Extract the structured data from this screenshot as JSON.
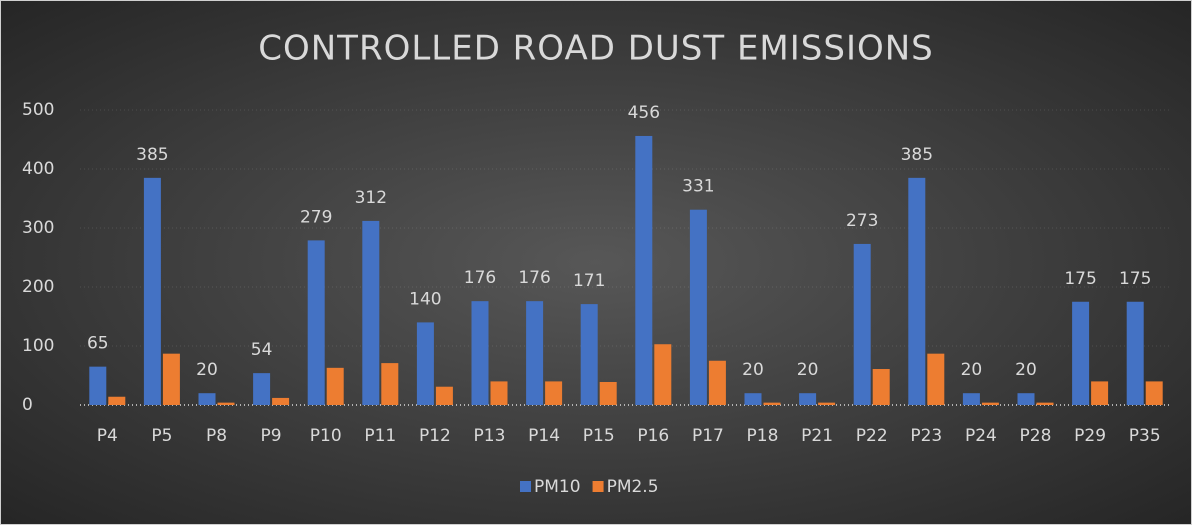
{
  "chart_data": {
    "type": "bar",
    "title": "CONTROLLED ROAD DUST EMISSIONS",
    "categories": [
      "P4",
      "P5",
      "P8",
      "P9",
      "P10",
      "P11",
      "P12",
      "P13",
      "P14",
      "P15",
      "P16",
      "P17",
      "P18",
      "P21",
      "P22",
      "P23",
      "P24",
      "P28",
      "P29",
      "P35"
    ],
    "series": [
      {
        "name": "PM10",
        "color": "#4472c4",
        "values": [
          65,
          385,
          20,
          54,
          279,
          312,
          140,
          176,
          176,
          171,
          456,
          331,
          20,
          20,
          273,
          385,
          20,
          20,
          175,
          175
        ]
      },
      {
        "name": "PM2.5",
        "color": "#ed7d31",
        "values": [
          14,
          87,
          4,
          12,
          63,
          71,
          31,
          40,
          40,
          39,
          103,
          75,
          4,
          4,
          61,
          87,
          4,
          4,
          40,
          40
        ]
      }
    ],
    "ylim": [
      0,
      500
    ],
    "yticks": [
      0,
      100,
      200,
      300,
      400,
      500
    ],
    "grid": true,
    "legend": "bottom"
  }
}
